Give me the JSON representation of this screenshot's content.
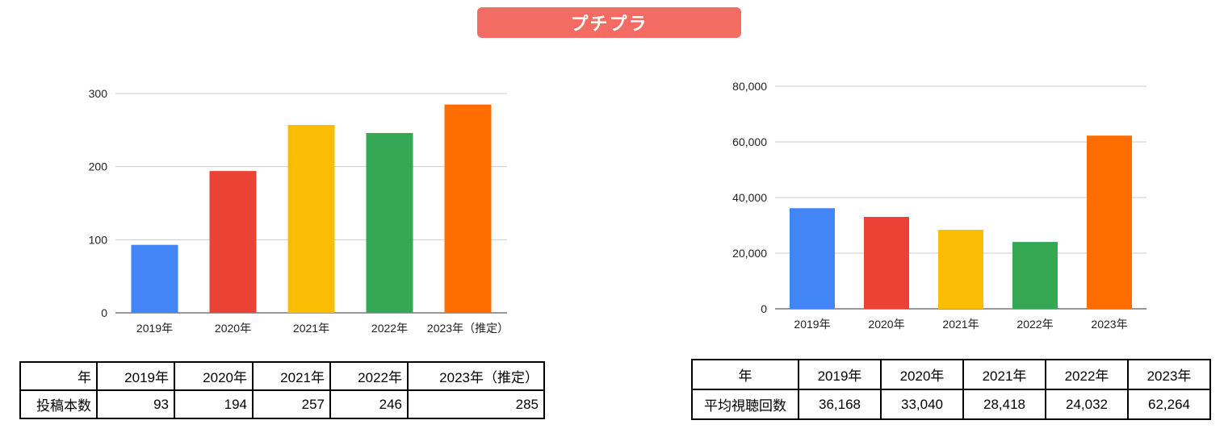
{
  "banner": {
    "title": "プチプラ"
  },
  "chart_data": [
    {
      "type": "bar",
      "categories": [
        "2019年",
        "2020年",
        "2021年",
        "2022年",
        "2023年（推定）"
      ],
      "values": [
        93,
        194,
        257,
        246,
        285
      ],
      "colors": [
        "#4285f4",
        "#ea4335",
        "#fbbc04",
        "#34a853",
        "#ff6d01"
      ],
      "yticks": [
        "0",
        "100",
        "200",
        "300"
      ],
      "ylim": [
        0,
        300
      ],
      "grid": true
    },
    {
      "type": "bar",
      "categories": [
        "2019年",
        "2020年",
        "2021年",
        "2022年",
        "2023年"
      ],
      "values": [
        36168,
        33040,
        28418,
        24032,
        62264
      ],
      "colors": [
        "#4285f4",
        "#ea4335",
        "#fbbc04",
        "#34a853",
        "#ff6d01"
      ],
      "yticks": [
        "0",
        "20,000",
        "40,000",
        "60,000",
        "80,000"
      ],
      "ylim": [
        0,
        80000
      ],
      "grid": true
    }
  ],
  "tables": {
    "posts": {
      "header": [
        "年",
        "2019年",
        "2020年",
        "2021年",
        "2022年",
        "2023年（推定）"
      ],
      "row": [
        "投稿本数",
        "93",
        "194",
        "257",
        "246",
        "285"
      ]
    },
    "views": {
      "header": [
        "年",
        "2019年",
        "2020年",
        "2021年",
        "2022年",
        "2023年"
      ],
      "row": [
        "平均視聴回数",
        "36,168",
        "33,040",
        "28,418",
        "24,032",
        "62,264"
      ]
    }
  }
}
